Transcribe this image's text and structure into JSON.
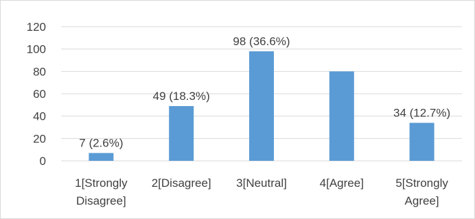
{
  "chart_data": {
    "type": "bar",
    "title": "",
    "xlabel": "",
    "ylabel": "",
    "categories": [
      [
        "1[Strongly",
        "Disagree]"
      ],
      [
        "2[Disagree]"
      ],
      [
        "3[Neutral]"
      ],
      [
        "4[Agree]"
      ],
      [
        "5[Strongly",
        "Agree]"
      ]
    ],
    "values": [
      7,
      49,
      98,
      80,
      34
    ],
    "data_labels": [
      "7 (2.6%)",
      "49 (18.3%)",
      "98 (36.6%)",
      "",
      "34 (12.7%)"
    ],
    "ylim": [
      0,
      120
    ],
    "yticks": [
      0,
      20,
      40,
      60,
      80,
      100,
      120
    ],
    "grid": true,
    "legend": "none",
    "bar_color": "#5b9bd5",
    "text_color": "#404040",
    "grid_color": "#d9d9d9"
  }
}
